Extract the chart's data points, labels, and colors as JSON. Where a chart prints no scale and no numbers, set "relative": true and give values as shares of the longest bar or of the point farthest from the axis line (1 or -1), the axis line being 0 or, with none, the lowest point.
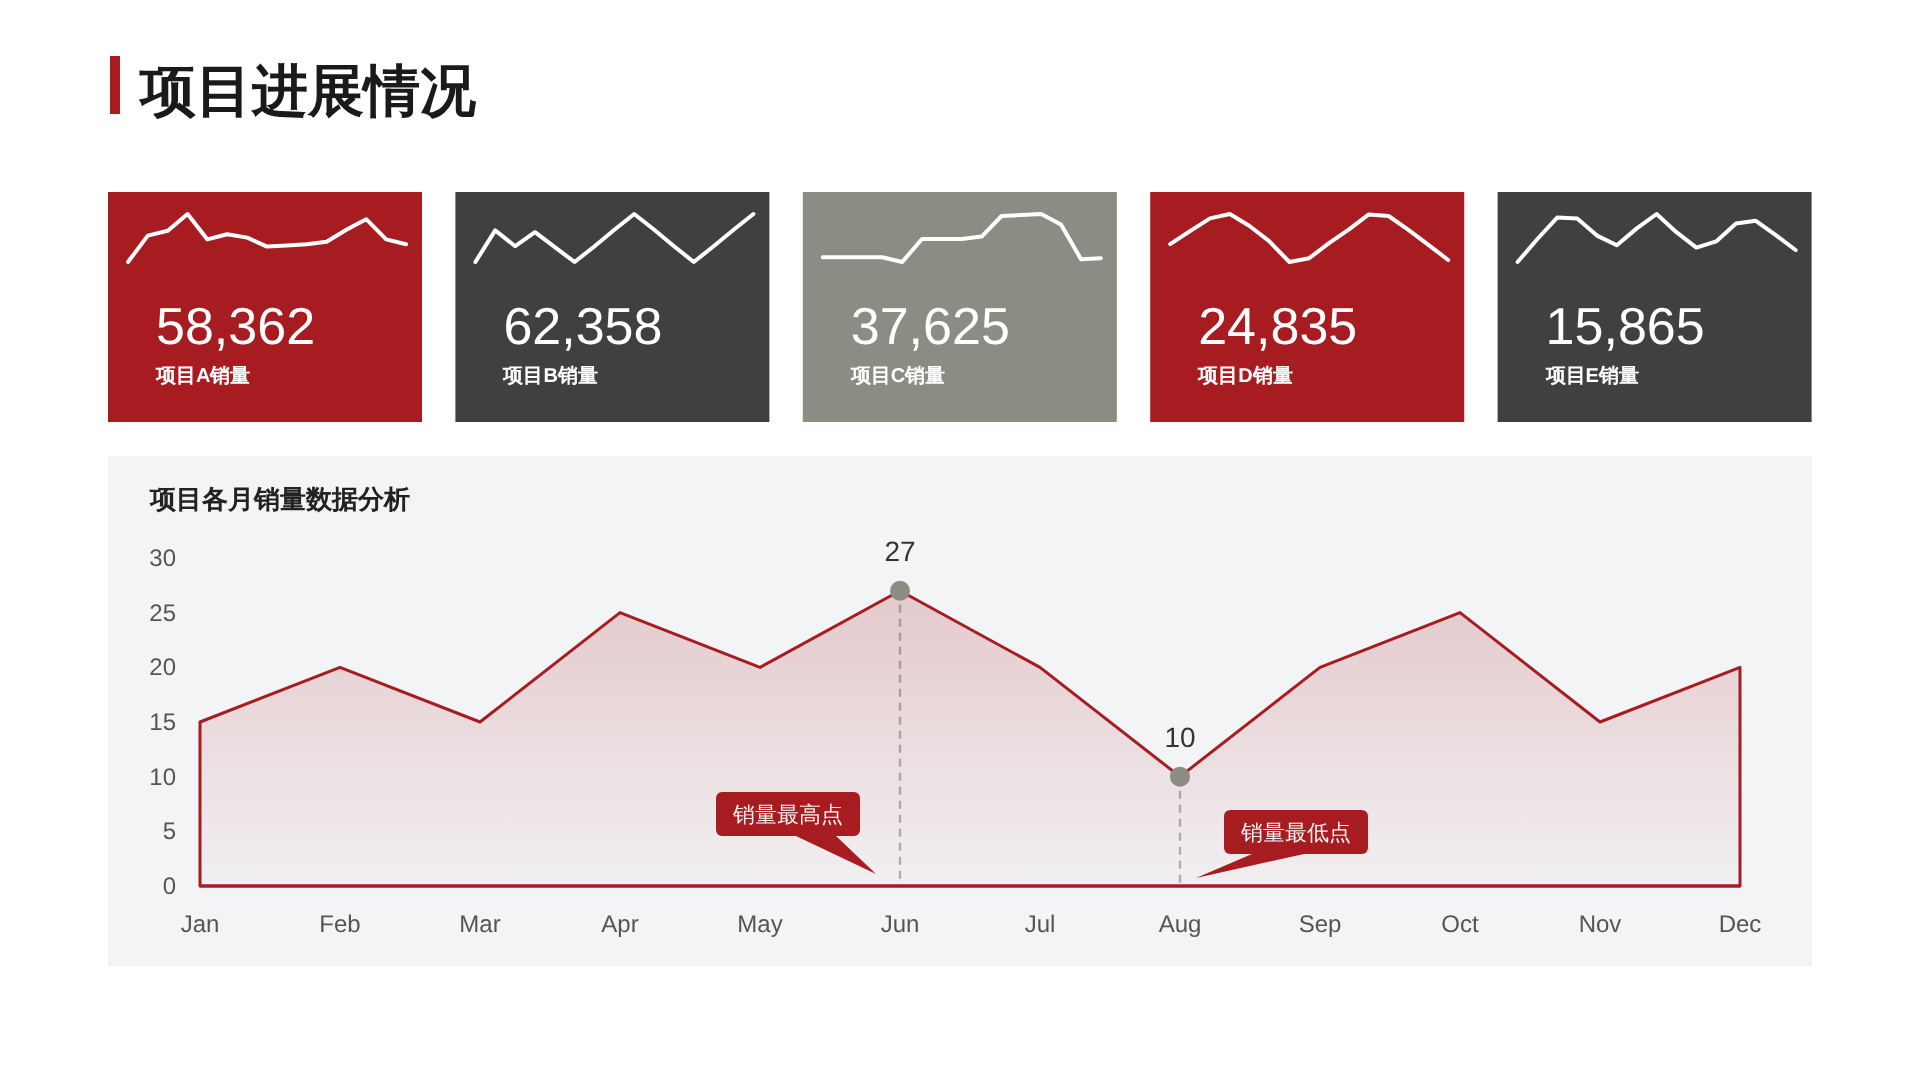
{
  "chart_data": [
    {
      "type": "other",
      "title": "项目进展情况"
    },
    {
      "type": "line",
      "relative": true,
      "title": "58,362",
      "subtitle": "项目A销量",
      "categories": [
        null,
        null,
        null,
        null,
        null,
        null,
        null,
        null,
        null,
        null,
        null,
        null,
        null,
        null,
        null
      ],
      "series": [
        {
          "color": "#ffffff",
          "values": [
            0,
            0.55,
            0.65,
            1,
            0.47,
            0.58,
            0.51,
            0.32,
            0.34,
            0.37,
            0.42,
            0.67,
            0.89,
            0.47,
            0.37
          ]
        }
      ],
      "marker": "none"
    },
    {
      "type": "line",
      "relative": true,
      "title": "62,358",
      "subtitle": "项目B销量",
      "categories": [
        null,
        null,
        null,
        null,
        null,
        null,
        null,
        null,
        null,
        null,
        null,
        null,
        null,
        null,
        null
      ],
      "series": [
        {
          "color": "#ffffff",
          "values": [
            0,
            0.66,
            0.33,
            0.62,
            0.31,
            0,
            0.33,
            0.67,
            1,
            0.67,
            0.33,
            0,
            0.33,
            0.67,
            1
          ]
        }
      ],
      "marker": "none"
    },
    {
      "type": "line",
      "relative": true,
      "title": "37,625",
      "subtitle": "项目C销量",
      "categories": [
        null,
        null,
        null,
        null,
        null,
        null,
        null,
        null,
        null,
        null,
        null,
        null,
        null,
        null,
        null
      ],
      "series": [
        {
          "color": "#ffffff",
          "values": [
            0.1,
            0.1,
            0.1,
            0.1,
            0,
            0.48,
            0.48,
            0.48,
            0.53,
            0.96,
            0.98,
            1,
            0.78,
            0.06,
            0.08
          ]
        }
      ],
      "marker": "none"
    },
    {
      "type": "line",
      "relative": true,
      "title": "24,835",
      "subtitle": "项目D销量",
      "categories": [
        null,
        null,
        null,
        null,
        null,
        null,
        null,
        null,
        null,
        null,
        null,
        null,
        null,
        null,
        null
      ],
      "series": [
        {
          "color": "#ffffff",
          "values": [
            0.37,
            0.64,
            0.91,
            1,
            0.75,
            0.43,
            0,
            0.08,
            0.39,
            0.68,
            0.99,
            0.96,
            0.67,
            0.36,
            0.04
          ]
        }
      ],
      "marker": "none"
    },
    {
      "type": "line",
      "relative": true,
      "title": "15,865",
      "subtitle": "项目E销量",
      "categories": [
        null,
        null,
        null,
        null,
        null,
        null,
        null,
        null,
        null,
        null,
        null,
        null,
        null,
        null,
        null
      ],
      "series": [
        {
          "color": "#ffffff",
          "values": [
            0,
            0.48,
            0.93,
            0.91,
            0.55,
            0.35,
            0.7,
            1,
            0.62,
            0.3,
            0.43,
            0.8,
            0.86,
            0.56,
            0.25
          ]
        }
      ],
      "marker": "none"
    },
    {
      "type": "area",
      "title": "项目各月销量数据分析",
      "categories": [
        "Jan",
        "Feb",
        "Mar",
        "Apr",
        "May",
        "Jun",
        "Jul",
        "Aug",
        "Sep",
        "Oct",
        "Nov",
        "Dec"
      ],
      "ylim": [
        0,
        30
      ],
      "yticks": [
        0,
        5,
        10,
        15,
        20,
        25,
        30
      ],
      "series": [
        {
          "type": "area",
          "color": "#a61c20",
          "marker": "none",
          "values": [
            15,
            20,
            15,
            25,
            20,
            27,
            20,
            10,
            20,
            25,
            15,
            20
          ]
        },
        {
          "type": "scatter",
          "color": "#8c8c84",
          "marker": "circle",
          "x": [
            "Jun",
            "Aug"
          ],
          "values": [
            27,
            10
          ],
          "value_labels": [
            "27",
            "10"
          ]
        }
      ],
      "annotations": [
        "销量最高点",
        "销量最低点"
      ]
    }
  ]
}
